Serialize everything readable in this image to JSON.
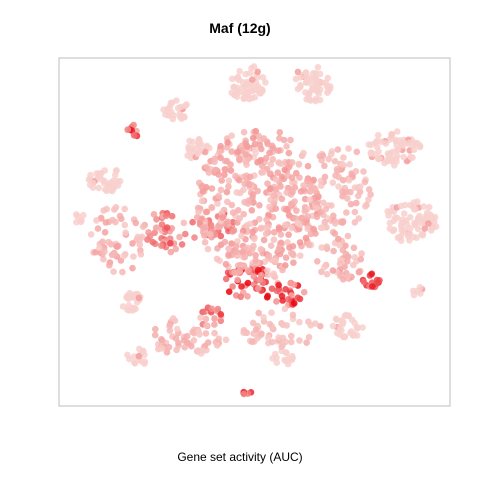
{
  "chart": {
    "title": "Maf (12g)",
    "xlabel": "Gene set activity (AUC)"
  },
  "chart_data": {
    "type": "scatter",
    "title": "Maf (12g)",
    "xlabel": "Gene set activity (AUC)",
    "ylabel": "",
    "xlim": [
      0,
      100
    ],
    "ylim": [
      0,
      100
    ],
    "grid": false,
    "legend": "none",
    "colors": {
      "low": "#f8d4d0",
      "high": "#e8000a"
    },
    "clusters": [
      {
        "name": "c1",
        "x": 48,
        "y": 93,
        "rx": 5,
        "ry": 5,
        "n": 55,
        "activity": 0.03
      },
      {
        "name": "c2",
        "x": 65,
        "y": 93,
        "rx": 5,
        "ry": 5.5,
        "n": 55,
        "activity": 0.03
      },
      {
        "name": "c3",
        "x": 30,
        "y": 85,
        "rx": 3.5,
        "ry": 3,
        "n": 25,
        "activity": 0.05
      },
      {
        "name": "c4",
        "x": 86,
        "y": 74,
        "rx": 7,
        "ry": 5,
        "n": 70,
        "activity": 0.03
      },
      {
        "name": "c5",
        "x": 90,
        "y": 53,
        "rx": 7,
        "ry": 6,
        "n": 75,
        "activity": 0.03
      },
      {
        "name": "c6",
        "x": 12,
        "y": 65,
        "rx": 4.5,
        "ry": 3.5,
        "n": 35,
        "activity": 0.03
      },
      {
        "name": "c7",
        "x": 35,
        "y": 74,
        "rx": 3.5,
        "ry": 3,
        "n": 25,
        "activity": 0.03
      },
      {
        "name": "c8",
        "x": 48,
        "y": 73,
        "rx": 2.5,
        "ry": 2.5,
        "n": 15,
        "activity": 0.03
      },
      {
        "name": "c9",
        "x": 18,
        "y": 30,
        "rx": 3.5,
        "ry": 3,
        "n": 25,
        "activity": 0.03
      },
      {
        "name": "c10",
        "x": 74,
        "y": 23,
        "rx": 4,
        "ry": 3.5,
        "n": 30,
        "activity": 0.03
      },
      {
        "name": "c11",
        "x": 20,
        "y": 14,
        "rx": 3,
        "ry": 2.5,
        "n": 15,
        "activity": 0.03
      },
      {
        "name": "c12",
        "x": 57,
        "y": 14,
        "rx": 3,
        "ry": 2.5,
        "n": 15,
        "activity": 0.03
      },
      {
        "name": "c13",
        "x": 5,
        "y": 54,
        "rx": 1.5,
        "ry": 1.5,
        "n": 6,
        "activity": 0.03
      },
      {
        "name": "c14",
        "x": 92,
        "y": 33,
        "rx": 2,
        "ry": 1.5,
        "n": 6,
        "activity": 0.03
      },
      {
        "name": "c15",
        "x": 19,
        "y": 79,
        "rx": 2,
        "ry": 2,
        "n": 10,
        "activity": 0.55
      },
      {
        "name": "c16",
        "x": 80,
        "y": 36,
        "rx": 2.5,
        "ry": 2,
        "n": 14,
        "activity": 0.55
      },
      {
        "name": "c17",
        "x": 48,
        "y": 36,
        "rx": 6,
        "ry": 5,
        "n": 45,
        "activity": 0.65
      },
      {
        "name": "c18",
        "x": 58,
        "y": 32,
        "rx": 5,
        "ry": 4,
        "n": 30,
        "activity": 0.6
      },
      {
        "name": "c19",
        "x": 38,
        "y": 26,
        "rx": 4,
        "ry": 3,
        "n": 15,
        "activity": 0.45
      },
      {
        "name": "c20",
        "x": 28,
        "y": 50,
        "rx": 7,
        "ry": 6,
        "n": 45,
        "activity": 0.4
      },
      {
        "name": "c21",
        "x": 40,
        "y": 52,
        "rx": 5,
        "ry": 4,
        "n": 30,
        "activity": 0.35
      },
      {
        "name": "c22",
        "x": 51,
        "y": 58,
        "rx": 16,
        "ry": 22,
        "n": 420,
        "activity": 0.18
      },
      {
        "name": "c23",
        "x": 72,
        "y": 62,
        "rx": 8,
        "ry": 14,
        "n": 90,
        "activity": 0.12
      },
      {
        "name": "c24",
        "x": 15,
        "y": 48,
        "rx": 7,
        "ry": 10,
        "n": 60,
        "activity": 0.15
      },
      {
        "name": "c25",
        "x": 33,
        "y": 20,
        "rx": 10,
        "ry": 6,
        "n": 60,
        "activity": 0.12
      },
      {
        "name": "c26",
        "x": 57,
        "y": 22,
        "rx": 10,
        "ry": 6,
        "n": 50,
        "activity": 0.1
      },
      {
        "name": "c27",
        "x": 72,
        "y": 42,
        "rx": 6,
        "ry": 6,
        "n": 45,
        "activity": 0.15
      },
      {
        "name": "c28",
        "x": 48,
        "y": 4,
        "rx": 1.2,
        "ry": 1,
        "n": 5,
        "activity": 0.6
      }
    ]
  }
}
